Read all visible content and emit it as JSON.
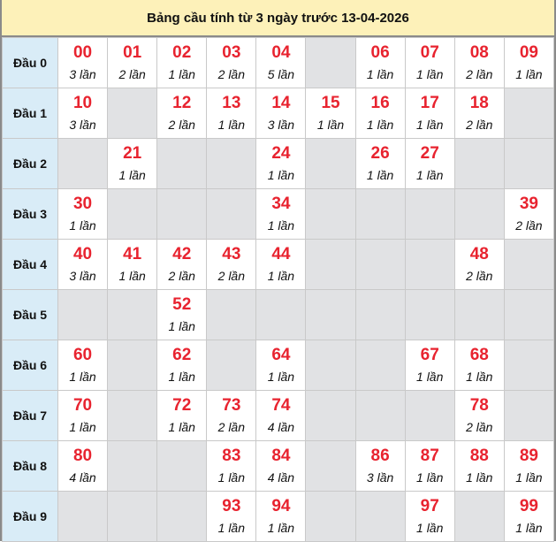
{
  "title": "Bảng cầu tính từ 3 ngày trước 13-04-2026",
  "colors": {
    "number": "#e8232f",
    "header_bg": "#fdf1b9",
    "label_bg": "#d9ecf7",
    "empty_bg": "#e1e2e4"
  },
  "rows": [
    {
      "label": "Đầu 0",
      "cells": [
        {
          "num": "00",
          "count": "3 lần"
        },
        {
          "num": "01",
          "count": "2 lần"
        },
        {
          "num": "02",
          "count": "1 lần"
        },
        {
          "num": "03",
          "count": "2 lần"
        },
        {
          "num": "04",
          "count": "5 lần"
        },
        null,
        {
          "num": "06",
          "count": "1 lần"
        },
        {
          "num": "07",
          "count": "1 lần"
        },
        {
          "num": "08",
          "count": "2 lần"
        },
        {
          "num": "09",
          "count": "1 lần"
        }
      ]
    },
    {
      "label": "Đầu 1",
      "cells": [
        {
          "num": "10",
          "count": "3 lần"
        },
        null,
        {
          "num": "12",
          "count": "2 lần"
        },
        {
          "num": "13",
          "count": "1 lần"
        },
        {
          "num": "14",
          "count": "3 lần"
        },
        {
          "num": "15",
          "count": "1 lần"
        },
        {
          "num": "16",
          "count": "1 lần"
        },
        {
          "num": "17",
          "count": "1 lần"
        },
        {
          "num": "18",
          "count": "2 lần"
        },
        null
      ]
    },
    {
      "label": "Đầu 2",
      "cells": [
        null,
        {
          "num": "21",
          "count": "1 lần"
        },
        null,
        null,
        {
          "num": "24",
          "count": "1 lần"
        },
        null,
        {
          "num": "26",
          "count": "1 lần"
        },
        {
          "num": "27",
          "count": "1 lần"
        },
        null,
        null
      ]
    },
    {
      "label": "Đầu 3",
      "cells": [
        {
          "num": "30",
          "count": "1 lần"
        },
        null,
        null,
        null,
        {
          "num": "34",
          "count": "1 lần"
        },
        null,
        null,
        null,
        null,
        {
          "num": "39",
          "count": "2 lần"
        }
      ]
    },
    {
      "label": "Đầu 4",
      "cells": [
        {
          "num": "40",
          "count": "3 lần"
        },
        {
          "num": "41",
          "count": "1 lần"
        },
        {
          "num": "42",
          "count": "2 lần"
        },
        {
          "num": "43",
          "count": "2 lần"
        },
        {
          "num": "44",
          "count": "1 lần"
        },
        null,
        null,
        null,
        {
          "num": "48",
          "count": "2 lần"
        },
        null
      ]
    },
    {
      "label": "Đầu 5",
      "cells": [
        null,
        null,
        {
          "num": "52",
          "count": "1 lần"
        },
        null,
        null,
        null,
        null,
        null,
        null,
        null
      ]
    },
    {
      "label": "Đầu 6",
      "cells": [
        {
          "num": "60",
          "count": "1 lần"
        },
        null,
        {
          "num": "62",
          "count": "1 lần"
        },
        null,
        {
          "num": "64",
          "count": "1 lần"
        },
        null,
        null,
        {
          "num": "67",
          "count": "1 lần"
        },
        {
          "num": "68",
          "count": "1 lần"
        },
        null
      ]
    },
    {
      "label": "Đầu 7",
      "cells": [
        {
          "num": "70",
          "count": "1 lần"
        },
        null,
        {
          "num": "72",
          "count": "1 lần"
        },
        {
          "num": "73",
          "count": "2 lần"
        },
        {
          "num": "74",
          "count": "4 lần"
        },
        null,
        null,
        null,
        {
          "num": "78",
          "count": "2 lần"
        },
        null
      ]
    },
    {
      "label": "Đầu 8",
      "cells": [
        {
          "num": "80",
          "count": "4 lần"
        },
        null,
        null,
        {
          "num": "83",
          "count": "1 lần"
        },
        {
          "num": "84",
          "count": "4 lần"
        },
        null,
        {
          "num": "86",
          "count": "3 lần"
        },
        {
          "num": "87",
          "count": "1 lần"
        },
        {
          "num": "88",
          "count": "1 lần"
        },
        {
          "num": "89",
          "count": "1 lần"
        }
      ]
    },
    {
      "label": "Đầu 9",
      "cells": [
        null,
        null,
        null,
        {
          "num": "93",
          "count": "1 lần"
        },
        {
          "num": "94",
          "count": "1 lần"
        },
        null,
        null,
        {
          "num": "97",
          "count": "1 lần"
        },
        null,
        {
          "num": "99",
          "count": "1 lần"
        }
      ]
    }
  ]
}
